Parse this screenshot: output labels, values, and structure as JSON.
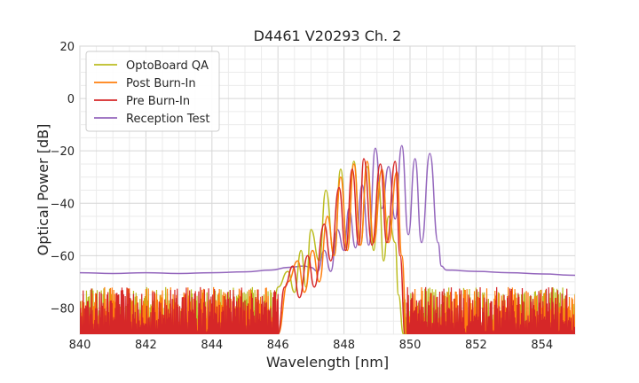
{
  "chart_data": {
    "type": "line",
    "title": "D4461 V20293 Ch. 2",
    "xlabel": "Wavelength [nm]",
    "ylabel": "Optical Power [dB]",
    "xlim": [
      840,
      855
    ],
    "ylim": [
      -90,
      20
    ],
    "xticks": [
      "840",
      "842",
      "844",
      "846",
      "848",
      "850",
      "852",
      "854"
    ],
    "yticks": [
      "20",
      "0",
      "−20",
      "−40",
      "−60",
      "−80"
    ],
    "grid": true,
    "legend_position": "top-left",
    "series": [
      {
        "name": "OptoBoard QA",
        "color": "#bcbd22",
        "noise_floor": {
          "x_start": 840.0,
          "x_end": 845.8,
          "x2_start": 849.8,
          "x2_end": 855.0
        },
        "peaks": [
          [
            846.3,
            -66
          ],
          [
            846.7,
            -58
          ],
          [
            847.0,
            -50
          ],
          [
            847.45,
            -35
          ],
          [
            847.9,
            -27
          ],
          [
            848.3,
            -24
          ],
          [
            848.7,
            -26
          ],
          [
            849.05,
            -32
          ]
        ],
        "points": [
          [
            845.8,
            -90
          ],
          [
            846.0,
            -72
          ],
          [
            846.3,
            -66
          ],
          [
            846.5,
            -74
          ],
          [
            846.7,
            -58
          ],
          [
            846.85,
            -72
          ],
          [
            847.0,
            -50
          ],
          [
            847.25,
            -62
          ],
          [
            847.45,
            -35
          ],
          [
            847.7,
            -60
          ],
          [
            847.9,
            -27
          ],
          [
            848.1,
            -58
          ],
          [
            848.3,
            -24
          ],
          [
            848.5,
            -56
          ],
          [
            848.7,
            -26
          ],
          [
            848.9,
            -58
          ],
          [
            849.05,
            -32
          ],
          [
            849.2,
            -62
          ],
          [
            849.35,
            -45
          ],
          [
            849.55,
            -55
          ],
          [
            849.65,
            -75
          ],
          [
            849.8,
            -90
          ]
        ]
      },
      {
        "name": "Post Burn-In",
        "color": "#ff7f0e",
        "noise_floor": {
          "x_start": 840.0,
          "x_end": 846.0,
          "x2_start": 849.9,
          "x2_end": 855.0
        },
        "points": [
          [
            846.0,
            -90
          ],
          [
            846.3,
            -70
          ],
          [
            846.6,
            -62
          ],
          [
            846.8,
            -74
          ],
          [
            847.05,
            -58
          ],
          [
            847.25,
            -70
          ],
          [
            847.5,
            -45
          ],
          [
            847.7,
            -60
          ],
          [
            847.9,
            -30
          ],
          [
            848.1,
            -58
          ],
          [
            848.3,
            -25
          ],
          [
            848.5,
            -56
          ],
          [
            848.7,
            -24
          ],
          [
            848.9,
            -55
          ],
          [
            849.15,
            -27
          ],
          [
            849.35,
            -55
          ],
          [
            849.6,
            -28
          ],
          [
            849.75,
            -60
          ],
          [
            849.9,
            -90
          ]
        ]
      },
      {
        "name": "Pre Burn-In",
        "color": "#d62728",
        "noise_floor": {
          "x_start": 840.0,
          "x_end": 846.0,
          "x2_start": 849.9,
          "x2_end": 855.0
        },
        "points": [
          [
            846.0,
            -90
          ],
          [
            846.2,
            -72
          ],
          [
            846.45,
            -64
          ],
          [
            846.65,
            -76
          ],
          [
            846.9,
            -60
          ],
          [
            847.1,
            -72
          ],
          [
            847.4,
            -48
          ],
          [
            847.6,
            -62
          ],
          [
            847.85,
            -34
          ],
          [
            848.05,
            -58
          ],
          [
            848.25,
            -27
          ],
          [
            848.45,
            -56
          ],
          [
            848.6,
            -23
          ],
          [
            848.85,
            -56
          ],
          [
            849.1,
            -25
          ],
          [
            849.3,
            -55
          ],
          [
            849.55,
            -24
          ],
          [
            849.7,
            -60
          ],
          [
            849.85,
            -90
          ]
        ]
      },
      {
        "name": "Reception Test",
        "color": "#9467bd",
        "points": [
          [
            840.0,
            -66.5
          ],
          [
            841.0,
            -66.8
          ],
          [
            842.0,
            -66.5
          ],
          [
            843.0,
            -66.8
          ],
          [
            844.0,
            -66.5
          ],
          [
            845.0,
            -66.2
          ],
          [
            845.8,
            -65.5
          ],
          [
            846.3,
            -64.5
          ],
          [
            846.8,
            -64.0
          ],
          [
            847.0,
            -64.5
          ],
          [
            847.2,
            -66.0
          ],
          [
            847.4,
            -58.0
          ],
          [
            847.6,
            -66.0
          ],
          [
            847.8,
            -50.0
          ],
          [
            848.0,
            -58.0
          ],
          [
            848.15,
            -42.0
          ],
          [
            848.35,
            -57.0
          ],
          [
            848.55,
            -33.0
          ],
          [
            848.75,
            -56.0
          ],
          [
            848.95,
            -19.0
          ],
          [
            849.15,
            -42.0
          ],
          [
            849.35,
            -26.0
          ],
          [
            849.55,
            -46.0
          ],
          [
            849.75,
            -18.0
          ],
          [
            849.95,
            -52.0
          ],
          [
            850.15,
            -23.0
          ],
          [
            850.35,
            -55.0
          ],
          [
            850.6,
            -21.0
          ],
          [
            850.85,
            -55.0
          ],
          [
            850.95,
            -64.0
          ],
          [
            851.1,
            -65.5
          ],
          [
            852.0,
            -66.0
          ],
          [
            853.0,
            -66.5
          ],
          [
            854.0,
            -67.0
          ],
          [
            855.0,
            -67.5
          ]
        ]
      }
    ]
  }
}
